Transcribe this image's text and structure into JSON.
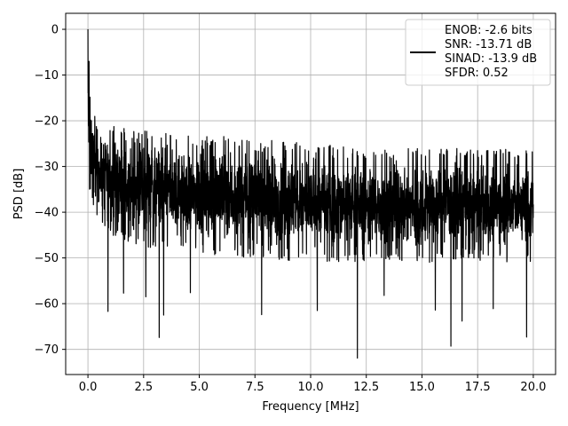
{
  "chart_data": {
    "type": "line",
    "xlabel": "Frequency [MHz]",
    "ylabel": "PSD [dB]",
    "xlim": [
      -1.0,
      21.0
    ],
    "ylim": [
      -75.5,
      3.5
    ],
    "xticks": [
      0.0,
      2.5,
      5.0,
      7.5,
      10.0,
      12.5,
      15.0,
      17.5,
      20.0
    ],
    "xtick_labels": [
      "0.0",
      "2.5",
      "5.0",
      "7.5",
      "10.0",
      "12.5",
      "15.0",
      "17.5",
      "20.0"
    ],
    "yticks": [
      0,
      -10,
      -20,
      -30,
      -40,
      -50,
      -60,
      -70
    ],
    "ytick_labels": [
      "0",
      "−10",
      "−20",
      "−30",
      "−40",
      "−50",
      "−60",
      "−70"
    ],
    "grid": true,
    "legend_position": "top-right",
    "series": [
      {
        "color": "#000000",
        "x_range": [
          0.0,
          20.0
        ],
        "envelope": {
          "x": [
            0.0,
            0.05,
            0.1,
            0.2,
            0.5,
            1.0,
            2.0,
            3.0,
            5.0,
            7.5,
            10.0,
            12.5,
            15.0,
            17.5,
            20.0
          ],
          "upper": [
            0.0,
            -12,
            -14,
            -17,
            -19,
            -21,
            -22,
            -22,
            -23,
            -24,
            -25,
            -26,
            -26,
            -26,
            -26
          ],
          "lower": [
            -30,
            -35,
            -36,
            -38,
            -42,
            -45,
            -47,
            -48,
            -49,
            -50,
            -51,
            -51,
            -51,
            -51,
            -51
          ]
        },
        "spikes": [
          {
            "x": 0.0,
            "y": 0.0
          },
          {
            "x": 0.05,
            "y": -7
          },
          {
            "x": 0.9,
            "y": -61.7
          },
          {
            "x": 1.6,
            "y": -57.7
          },
          {
            "x": 2.6,
            "y": -58.5
          },
          {
            "x": 3.2,
            "y": -67.4
          },
          {
            "x": 3.4,
            "y": -62.5
          },
          {
            "x": 4.6,
            "y": -57.6
          },
          {
            "x": 7.8,
            "y": -62.4
          },
          {
            "x": 10.3,
            "y": -61.5
          },
          {
            "x": 12.1,
            "y": -71.9
          },
          {
            "x": 13.3,
            "y": -58.2
          },
          {
            "x": 15.6,
            "y": -61.4
          },
          {
            "x": 16.3,
            "y": -69.3
          },
          {
            "x": 16.8,
            "y": -63.8
          },
          {
            "x": 18.2,
            "y": -61.1
          },
          {
            "x": 19.7,
            "y": -67.3
          }
        ]
      }
    ],
    "legend": {
      "lines": [
        "ENOB: -2.6 bits",
        "SNR: -13.71 dB",
        "SINAD: -13.9 dB",
        "SFDR: 0.52"
      ]
    }
  }
}
